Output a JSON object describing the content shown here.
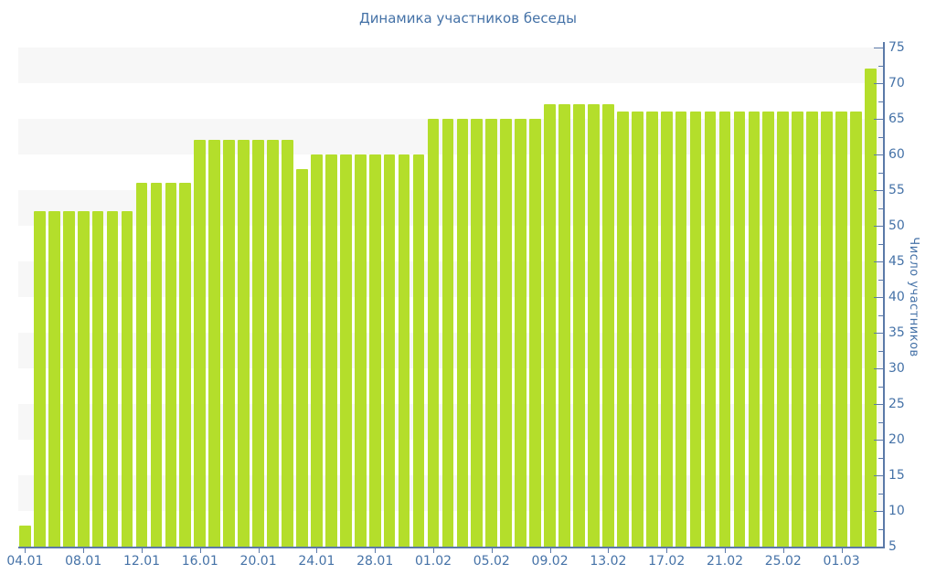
{
  "chart_data": {
    "type": "bar",
    "title": "Динамика участников беседы",
    "xlabel": "",
    "ylabel": "Число участников",
    "ylim": [
      5,
      75
    ],
    "y_tick_step": 5,
    "y_minor_tick_step": 2.5,
    "grid": "alternating-horizontal-bands",
    "legend": "none",
    "categories": [
      "04.01",
      "05.01",
      "06.01",
      "07.01",
      "08.01",
      "09.01",
      "10.01",
      "11.01",
      "12.01",
      "13.01",
      "14.01",
      "15.01",
      "16.01",
      "17.01",
      "18.01",
      "19.01",
      "20.01",
      "21.01",
      "22.01",
      "23.01",
      "24.01",
      "25.01",
      "26.01",
      "27.01",
      "28.01",
      "29.01",
      "30.01",
      "31.01",
      "01.02",
      "02.02",
      "03.02",
      "04.02",
      "05.02",
      "06.02",
      "07.02",
      "08.02",
      "09.02",
      "10.02",
      "11.02",
      "12.02",
      "13.02",
      "14.02",
      "15.02",
      "16.02",
      "17.02",
      "18.02",
      "19.02",
      "20.02",
      "21.02",
      "22.02",
      "23.02",
      "24.02",
      "25.02",
      "26.02",
      "27.02",
      "28.02",
      "01.03",
      "02.03",
      "03.03"
    ],
    "values": [
      8,
      52,
      52,
      52,
      52,
      52,
      52,
      52,
      56,
      56,
      56,
      56,
      62,
      62,
      62,
      62,
      62,
      62,
      62,
      58,
      60,
      60,
      60,
      60,
      60,
      60,
      60,
      60,
      65,
      65,
      65,
      65,
      65,
      65,
      65,
      65,
      67,
      67,
      67,
      67,
      67,
      66,
      66,
      66,
      66,
      66,
      66,
      66,
      66,
      66,
      66,
      66,
      66,
      66,
      66,
      66,
      66,
      66,
      72
    ],
    "x_tick_labels": [
      "04.01",
      "08.01",
      "12.01",
      "16.01",
      "20.01",
      "24.01",
      "28.01",
      "01.02",
      "05.02",
      "09.02",
      "13.02",
      "17.02",
      "21.02",
      "25.02",
      "01.03"
    ],
    "x_tick_every": 4,
    "colors": {
      "bar": "#b4de2b",
      "band": "#f7f7f7",
      "axis": "#5b79a8",
      "labels": "#4572a7",
      "background": "#ffffff"
    }
  }
}
